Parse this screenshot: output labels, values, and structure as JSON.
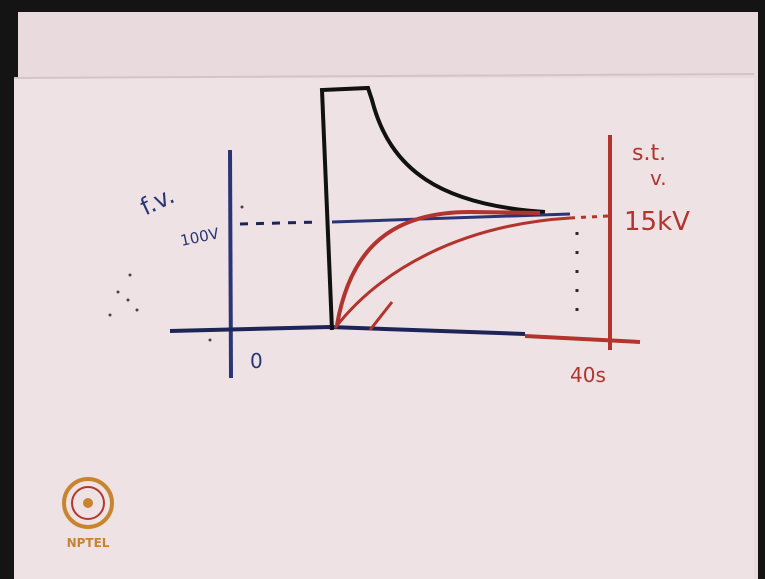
{
  "labels": {
    "y_left": "f.v.",
    "y_left_value": "100V",
    "origin": "0",
    "y_right_top": "s.t.",
    "y_right_bottom": "v.",
    "y_right_value": "15kV",
    "x_end": "40s"
  },
  "logo": "NPTEL"
}
